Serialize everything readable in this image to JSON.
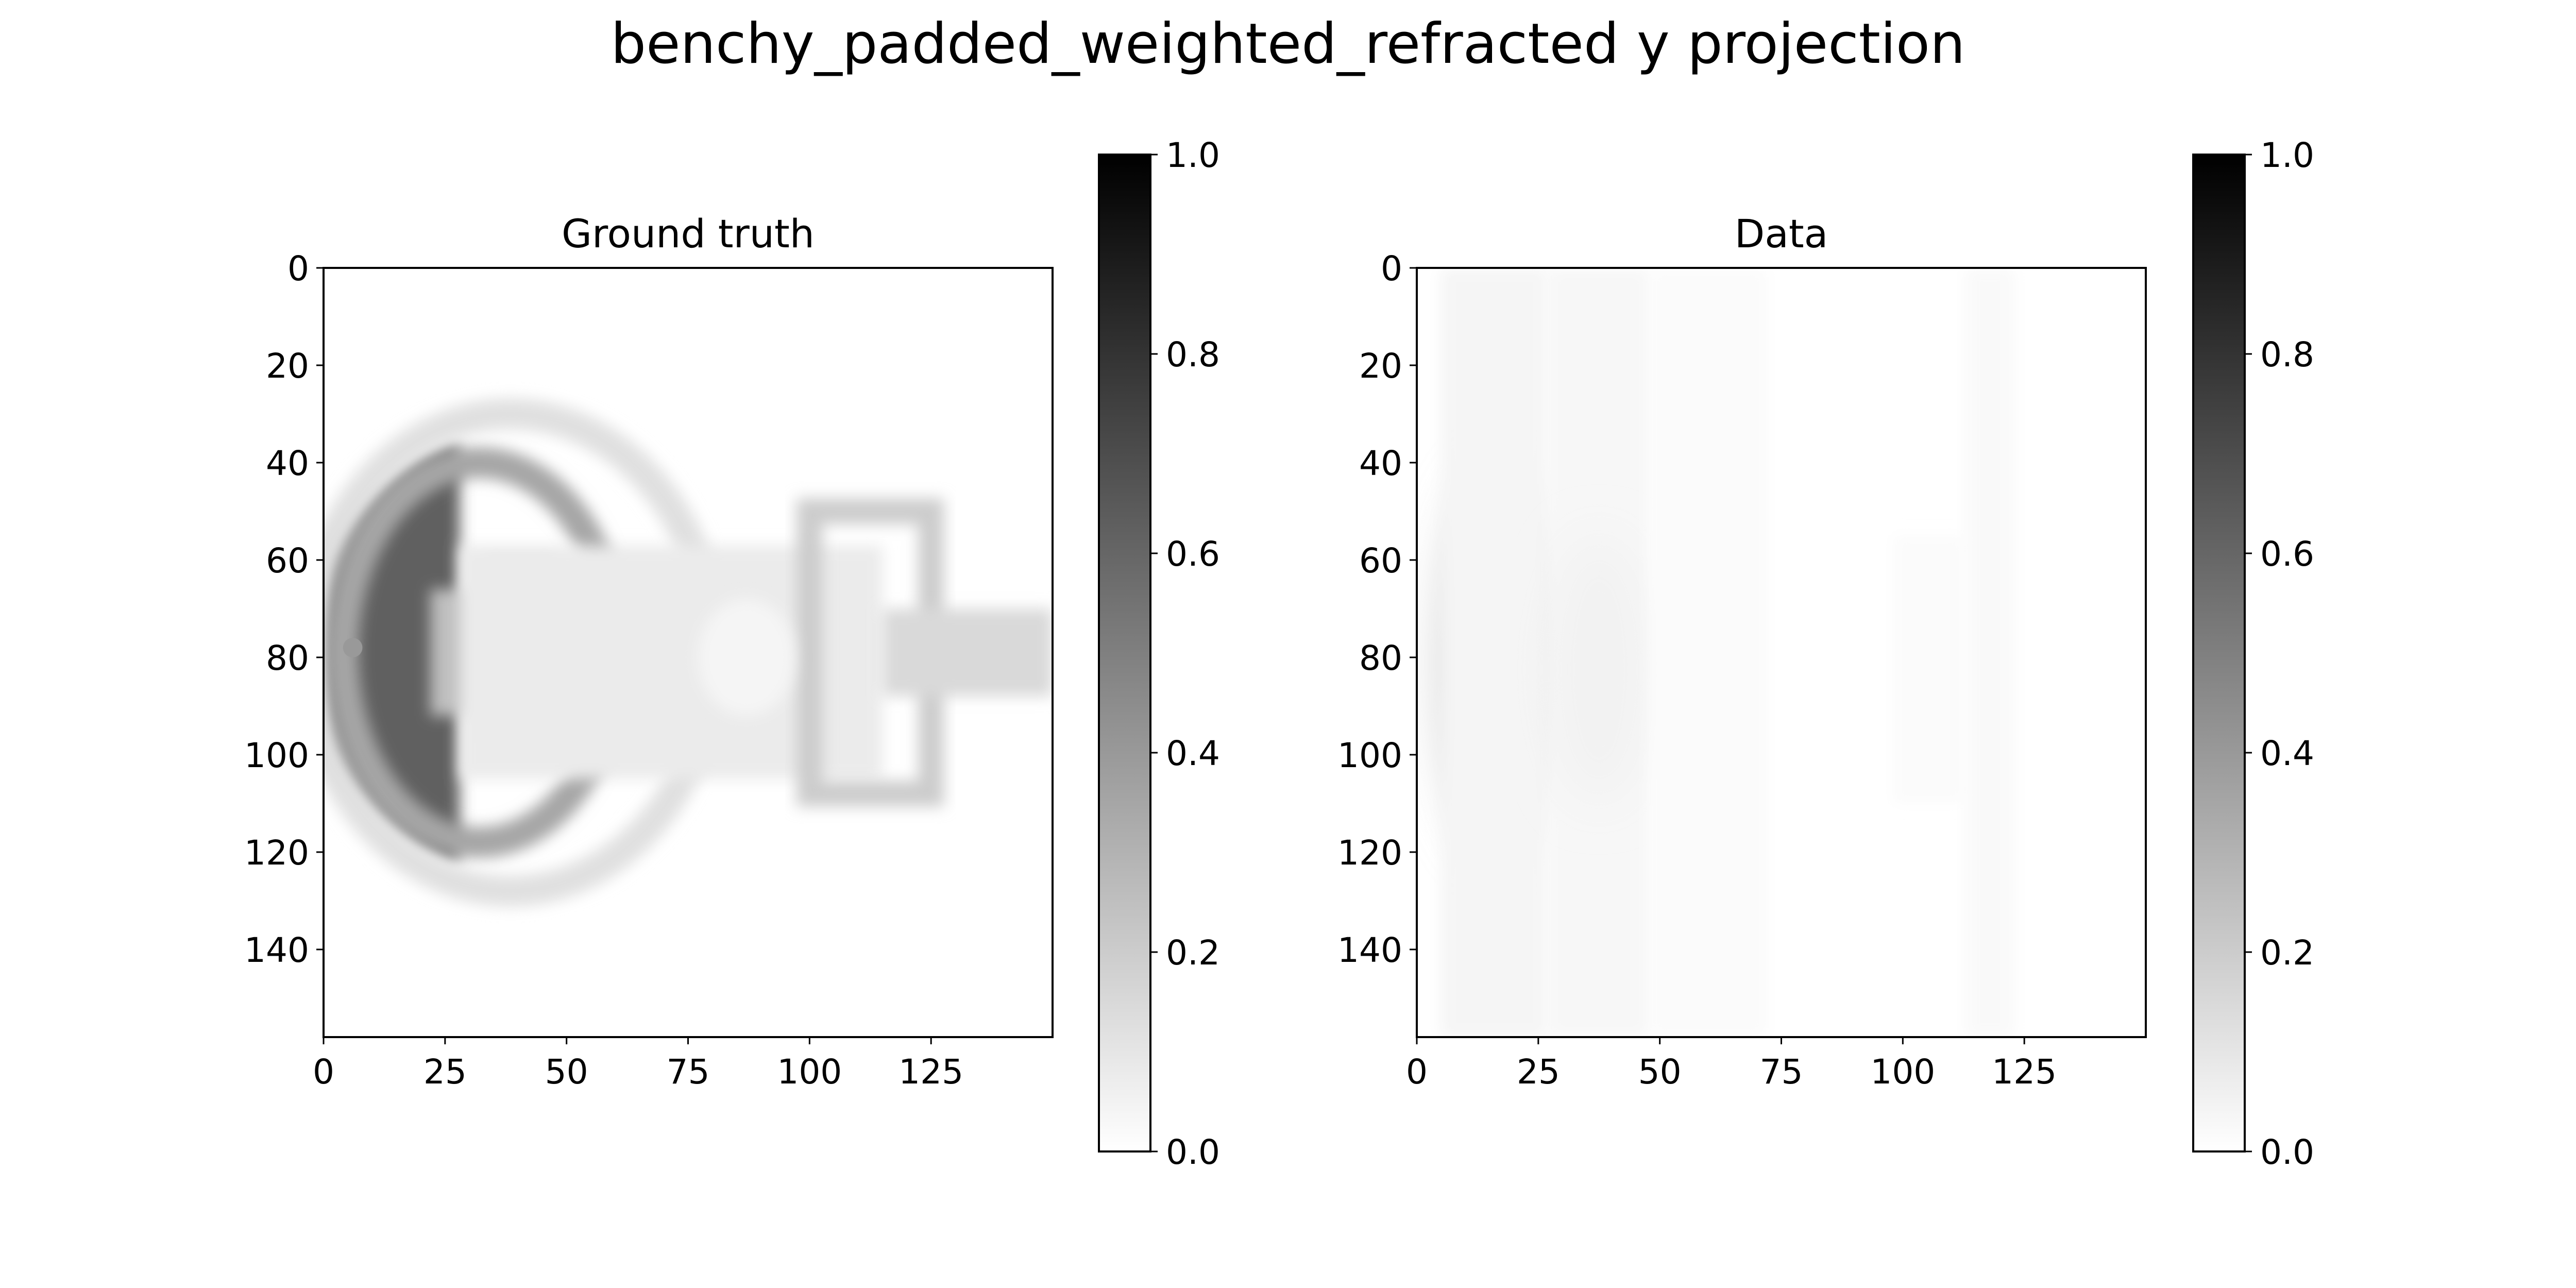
{
  "figure": {
    "suptitle": "benchy_padded_weighted_refracted y projection"
  },
  "chart_data": [
    {
      "type": "heatmap",
      "title": "Ground truth",
      "xlabel": "",
      "ylabel": "",
      "xlim": [
        0,
        150
      ],
      "ylim": [
        158,
        0
      ],
      "x_ticks": [
        0,
        25,
        50,
        75,
        100,
        125
      ],
      "y_ticks": [
        0,
        20,
        40,
        60,
        80,
        100,
        120,
        140
      ],
      "colormap": "gray_r",
      "colorbar": {
        "range": [
          0.0,
          1.0
        ],
        "ticks": [
          "0.0",
          "0.2",
          "0.4",
          "0.6",
          "0.8",
          "1.0"
        ]
      },
      "features": [
        {
          "shape": "hull-bow",
          "x": [
            0,
            28
          ],
          "y": [
            36,
            122
          ],
          "value": 0.62
        },
        {
          "shape": "hull-edge",
          "x": [
            25,
            60
          ],
          "y": [
            40,
            118
          ],
          "value": 0.35
        },
        {
          "shape": "deck-rim",
          "x": [
            28,
            80
          ],
          "y": [
            30,
            128
          ],
          "value": 0.12
        },
        {
          "shape": "block",
          "x": [
            22,
            48
          ],
          "y": [
            66,
            92
          ],
          "value": 0.25
        },
        {
          "shape": "block",
          "x": [
            33,
            48
          ],
          "y": [
            60,
            97
          ],
          "value": 0.3
        },
        {
          "shape": "cabin",
          "x": [
            28,
            115
          ],
          "y": [
            57,
            105
          ],
          "value": 0.08
        },
        {
          "shape": "cabin-frame",
          "x": [
            100,
            125
          ],
          "y": [
            50,
            108
          ],
          "value": 0.2
        },
        {
          "shape": "chimney",
          "x": [
            115,
            150
          ],
          "y": [
            70,
            88
          ],
          "value": 0.15
        },
        {
          "shape": "circle",
          "x": [
            77,
            97
          ],
          "y": [
            68,
            92
          ],
          "value": 0.04
        },
        {
          "shape": "dot",
          "x": [
            4,
            8
          ],
          "y": [
            76,
            80
          ],
          "value": 0.4
        }
      ]
    },
    {
      "type": "heatmap",
      "title": "Data",
      "xlabel": "",
      "ylabel": "",
      "xlim": [
        0,
        150
      ],
      "ylim": [
        158,
        0
      ],
      "x_ticks": [
        0,
        25,
        50,
        75,
        100,
        125
      ],
      "y_ticks": [
        0,
        20,
        40,
        60,
        80,
        100,
        120,
        140
      ],
      "colormap": "gray_r",
      "colorbar": {
        "range": [
          0.0,
          1.0
        ],
        "ticks": [
          "0.0",
          "0.2",
          "0.4",
          "0.6",
          "0.8",
          "1.0"
        ]
      },
      "features": [
        {
          "shape": "blob",
          "x": [
            5,
            27
          ],
          "y": [
            42,
            120
          ],
          "value": 0.18
        },
        {
          "shape": "band",
          "x": [
            5,
            27
          ],
          "y": [
            0,
            158
          ],
          "value": 0.04
        },
        {
          "shape": "band",
          "x": [
            27,
            48
          ],
          "y": [
            0,
            158
          ],
          "value": 0.03
        },
        {
          "shape": "blob",
          "x": [
            27,
            48
          ],
          "y": [
            55,
            110
          ],
          "value": 0.05
        },
        {
          "shape": "band",
          "x": [
            48,
            72
          ],
          "y": [
            0,
            158
          ],
          "value": 0.015
        },
        {
          "shape": "band",
          "x": [
            113,
            123
          ],
          "y": [
            0,
            158
          ],
          "value": 0.025
        },
        {
          "shape": "band",
          "x": [
            98,
            113
          ],
          "y": [
            55,
            110
          ],
          "value": 0.015
        }
      ]
    }
  ]
}
